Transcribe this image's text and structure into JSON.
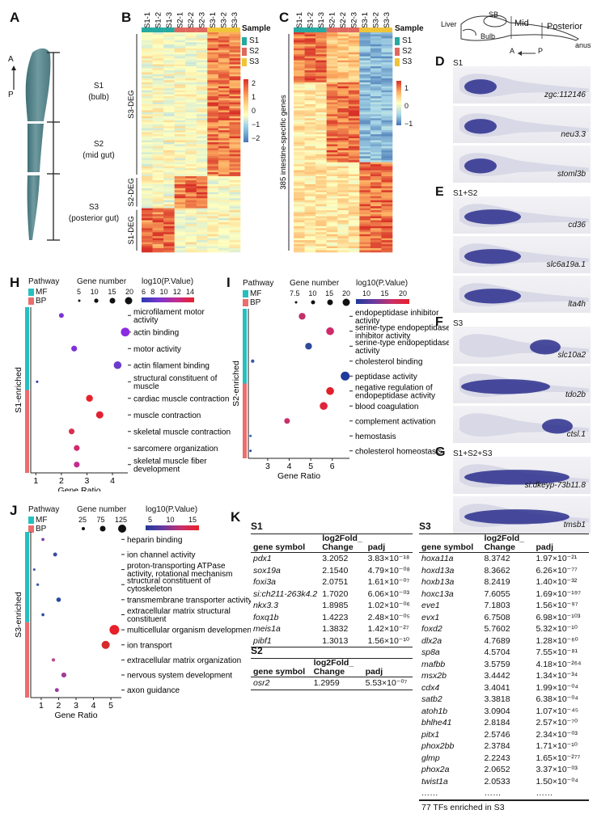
{
  "panel_labels": {
    "A": "A",
    "B": "B",
    "C": "C",
    "D": "D",
    "E": "E",
    "F": "F",
    "G": "G",
    "H": "H",
    "I": "I",
    "J": "J",
    "K": "K"
  },
  "panelA": {
    "axis_a": "A",
    "axis_p": "P",
    "segments": [
      {
        "name": "S1",
        "desc": "(bulb)"
      },
      {
        "name": "S2",
        "desc": "(mid gut)"
      },
      {
        "name": "S3",
        "desc": "(posterior gut)"
      }
    ]
  },
  "panelB": {
    "columns": [
      "S1-1",
      "S1-2",
      "S1-3",
      "S2-1",
      "S2-2",
      "S2-3",
      "S3-1",
      "S3-2",
      "S3-3"
    ],
    "legend_title": "Sample",
    "legend": [
      {
        "label": "S1",
        "color": "#26a9a0"
      },
      {
        "label": "S2",
        "color": "#e0685e"
      },
      {
        "label": "S3",
        "color": "#f0c43a"
      }
    ],
    "scale_ticks": [
      "2",
      "1",
      "0",
      "−1",
      "−2"
    ],
    "row_groups": [
      "S3-DEG",
      "S2-DEG",
      "S1-DEG"
    ]
  },
  "panelC": {
    "columns": [
      "S1-1",
      "S1-2",
      "S1-3",
      "S2-1",
      "S2-2",
      "S2-3",
      "S3-1",
      "S3-2",
      "S3-3"
    ],
    "legend_title": "Sample",
    "legend": [
      {
        "label": "S1",
        "color": "#26a9a0"
      },
      {
        "label": "S2",
        "color": "#e0685e"
      },
      {
        "label": "S3",
        "color": "#f0c43a"
      }
    ],
    "scale_ticks": [
      "1",
      "0",
      "−1"
    ],
    "row_label": "385 intestine-specific genes"
  },
  "schematic": {
    "liver": "Liver",
    "sb": "SB",
    "bulb": "Bulb",
    "mid": "Mid",
    "posterior": "Posterior",
    "anus": "anus",
    "a": "A",
    "p": "P"
  },
  "ish": {
    "D": {
      "title": "S1",
      "genes": [
        "zgc:112146",
        "neu3.3",
        "stoml3b"
      ]
    },
    "E": {
      "title": "S1+S2",
      "genes": [
        "cd36",
        "slc6a19a.1",
        "lta4h"
      ]
    },
    "F": {
      "title": "S3",
      "genes": [
        "slc10a2",
        "tdo2b",
        "ctsl.1"
      ]
    },
    "G": {
      "title": "S1+S2+S3",
      "genes": [
        "si:dkeyp-73b11.8",
        "tmsb1"
      ]
    }
  },
  "panelH": {
    "legend": {
      "pathway": "Pathway",
      "mf": "MF",
      "bp": "BP",
      "gene_number": "Gene number",
      "sizes": [
        "5",
        "10",
        "15",
        "20"
      ],
      "pval_title": "log10(P.Value)",
      "pval_ticks": [
        "6",
        "8",
        "10",
        "12",
        "14"
      ]
    },
    "group_label": "S1-enriched",
    "xlabel": "Gene Ratio",
    "xticks": [
      "1",
      "2",
      "3",
      "4"
    ],
    "chart_data": {
      "type": "scatter",
      "xlabel": "Gene Ratio",
      "xlim": [
        0.8,
        4.6
      ],
      "terms": [
        "microfilament motor activity",
        "actin binding",
        "motor activity",
        "actin filament binding",
        "structural constituent of muscle",
        "cardiac muscle contraction",
        "muscle contraction",
        "skeletal muscle contraction",
        "sarcomere organization",
        "skeletal muscle fiber development"
      ],
      "categories": [
        "MF",
        "MF",
        "MF",
        "MF",
        "MF",
        "BP",
        "BP",
        "BP",
        "BP",
        "BP"
      ],
      "x": [
        2.0,
        4.5,
        2.5,
        4.2,
        1.05,
        3.1,
        3.5,
        2.4,
        2.6,
        2.6
      ],
      "size": [
        10,
        18,
        12,
        16,
        5,
        14,
        15,
        12,
        12,
        12
      ],
      "color": [
        "#7a35d0",
        "#8a2be0",
        "#7d33d8",
        "#6d3cc8",
        "#2b3bb0",
        "#e8202a",
        "#e32033",
        "#d93050",
        "#d02a6a",
        "#c32b90"
      ]
    }
  },
  "panelI": {
    "legend": {
      "pathway": "Pathway",
      "mf": "MF",
      "bp": "BP",
      "gene_number": "Gene number",
      "sizes": [
        "7.5",
        "10",
        "15",
        "20"
      ],
      "pval_title": "log10(P.Value)",
      "pval_ticks": [
        "10",
        "15",
        "20"
      ]
    },
    "group_label": "S2-enriched",
    "xlabel": "Gene Ratio",
    "xticks": [
      "3",
      "4",
      "5",
      "6"
    ],
    "chart_data": {
      "type": "scatter",
      "xlabel": "Gene Ratio",
      "xlim": [
        2.1,
        6.8
      ],
      "terms": [
        "endopeptidase inhibitor activity",
        "serine-type endopeptidase inhibitor activity",
        "serine-type endopeptidase activity",
        "cholesterol binding",
        "peptidase activity",
        "negative regulation of endopeptidase activity",
        "blood coagulation",
        "complement activation",
        "hemostasis",
        "cholesterol homeostasis"
      ],
      "categories": [
        "MF",
        "MF",
        "MF",
        "MF",
        "MF",
        "BP",
        "BP",
        "BP",
        "BP",
        "BP"
      ],
      "x": [
        4.6,
        5.9,
        4.9,
        2.3,
        6.6,
        5.9,
        5.6,
        3.9,
        2.2,
        2.2
      ],
      "size": [
        12,
        14,
        12,
        6,
        16,
        14,
        14,
        10,
        4,
        4
      ],
      "color": [
        "#c0306a",
        "#d02a6a",
        "#2f4a9a",
        "#3a5aa0",
        "#1f3a9a",
        "#e0202a",
        "#e2243a",
        "#c8306a",
        "#2a6aa0",
        "#2a4aa0"
      ]
    }
  },
  "panelJ": {
    "legend": {
      "pathway": "Pathway",
      "mf": "MF",
      "bp": "BP",
      "gene_number": "Gene number",
      "sizes": [
        "25",
        "75",
        "125"
      ],
      "pval_title": "log10(P.Value)",
      "pval_ticks": [
        "5",
        "10",
        "15"
      ]
    },
    "group_label": "S3-enriched",
    "xlabel": "Gene Ratio",
    "xticks": [
      "1",
      "2",
      "3",
      "4",
      "5"
    ],
    "chart_data": {
      "type": "scatter",
      "xlabel": "Gene Ratio",
      "xlim": [
        0.4,
        5.6
      ],
      "terms": [
        "heparin binding",
        "ion channel activity",
        "proton-transporting ATPase activity, rotational mechanism",
        "structural constituent of cytoskeleton",
        "transmembrane transporter activity",
        "extracellular matrix structural constituent",
        "multicellular organism development",
        "ion transport",
        "extracellular matrix organization",
        "nervous system development",
        "axon guidance"
      ],
      "categories": [
        "MF",
        "MF",
        "MF",
        "MF",
        "MF",
        "MF",
        "BP",
        "BP",
        "BP",
        "BP",
        "BP"
      ],
      "x": [
        1.1,
        1.8,
        0.6,
        0.8,
        2.0,
        1.1,
        5.2,
        4.7,
        1.7,
        2.3,
        1.9
      ],
      "size": [
        20,
        40,
        10,
        15,
        50,
        20,
        150,
        120,
        30,
        60,
        40
      ],
      "color": [
        "#7a3aaa",
        "#3a4ea0",
        "#3a5aa8",
        "#3a5aa8",
        "#2a4aa0",
        "#2a4aa0",
        "#e8202a",
        "#d82a2a",
        "#c04a8a",
        "#a23a9a",
        "#9a3aa0"
      ]
    }
  },
  "panelK": {
    "S1": {
      "title": "S1",
      "headers": [
        "gene symbol",
        "log2Fold_ Change",
        "padj"
      ],
      "rows": [
        [
          "pdx1",
          "3.2052",
          "3.83×10⁻¹⁸"
        ],
        [
          "sox19a",
          "2.1540",
          "4.79×10⁻⁰⁸"
        ],
        [
          "foxi3a",
          "2.0751",
          "1.61×10⁻⁰⁷"
        ],
        [
          "si:ch211-263k4.2",
          "1.7020",
          "6.06×10⁻⁰³"
        ],
        [
          "nkx3.3",
          "1.8985",
          "1.02×10⁻⁰⁶"
        ],
        [
          "foxq1b",
          "1.4223",
          "2.48×10⁻⁰⁵"
        ],
        [
          "meis1a",
          "1.3832",
          "1.42×10⁻²⁷"
        ],
        [
          "pibf1",
          "1.3013",
          "1.56×10⁻¹⁰"
        ]
      ]
    },
    "S2": {
      "title": "S2",
      "headers": [
        "gene symbol",
        "log2Fold_ Change",
        "padj"
      ],
      "rows": [
        [
          "osr2",
          "1.2959",
          "5.53×10⁻⁰⁷"
        ]
      ]
    },
    "S3": {
      "title": "S3",
      "headers": [
        "gene symbol",
        "log2Fold_ Change",
        "padj"
      ],
      "rows": [
        [
          "hoxa11a",
          "8.3742",
          "1.97×10⁻²¹"
        ],
        [
          "hoxd13a",
          "8.3662",
          "6.26×10⁻⁷⁷"
        ],
        [
          "hoxb13a",
          "8.2419",
          "1.40×10⁻³²"
        ],
        [
          "hoxc13a",
          "7.6055",
          "1.69×10⁻¹⁹⁷"
        ],
        [
          "eve1",
          "7.1803",
          "1.56×10⁻⁹⁷"
        ],
        [
          "evx1",
          "6.7508",
          "6.98×10⁻¹⁰³"
        ],
        [
          "foxd2",
          "5.7602",
          "5.32×10⁻¹⁰"
        ],
        [
          "dlx2a",
          "4.7689",
          "1.28×10⁻⁶⁰"
        ],
        [
          "sp8a",
          "4.5704",
          "7.55×10⁻⁸¹"
        ],
        [
          "mafbb",
          "3.5759",
          "4.18×10⁻²⁶⁴"
        ],
        [
          "msx2b",
          "3.4442",
          "1.34×10⁻³⁴"
        ],
        [
          "cdx4",
          "3.4041",
          "1.99×10⁻⁰⁴"
        ],
        [
          "satb2",
          "3.3818",
          "6.38×10⁻⁰⁴"
        ],
        [
          "atoh1b",
          "3.0904",
          "1.07×10⁻⁴⁵"
        ],
        [
          "bhlhe41",
          "2.8184",
          "2.57×10⁻⁷⁰"
        ],
        [
          "pitx1",
          "2.5746",
          "2.34×10⁻⁰³"
        ],
        [
          "phox2bb",
          "2.3784",
          "1.71×10⁻¹⁰"
        ],
        [
          "glmp",
          "2.2243",
          "1.65×10⁻²⁷⁷"
        ],
        [
          "phox2a",
          "2.0652",
          "3.37×10⁻⁰³"
        ],
        [
          "twist1a",
          "2.0533",
          "1.50×10⁻⁰⁴"
        ],
        [
          "……",
          "……",
          "……"
        ]
      ],
      "footer": "77 TFs enriched in S3"
    }
  }
}
